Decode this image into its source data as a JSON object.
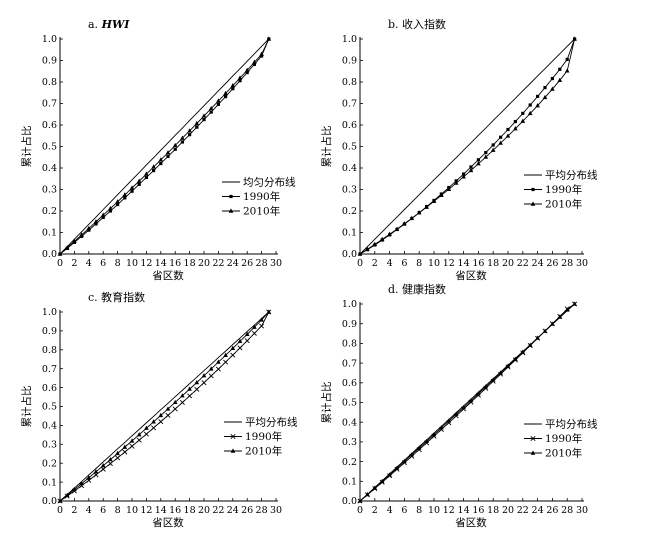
{
  "chart_data": [
    {
      "type": "line",
      "title": "a. HWI",
      "title_prefix": "a.",
      "title_main": "HWI",
      "title_italic": true,
      "xlabel": "省区数",
      "ylabel": "累计占比",
      "xlim": [
        0,
        30
      ],
      "ylim": [
        0,
        1.0
      ],
      "xticks": [
        0,
        2,
        4,
        6,
        8,
        10,
        12,
        14,
        16,
        18,
        20,
        22,
        24,
        26,
        28,
        30
      ],
      "yticks": [
        0.0,
        0.1,
        0.2,
        0.3,
        0.4,
        0.5,
        0.6,
        0.7,
        0.8,
        0.9,
        1.0
      ],
      "legend_position": "center-right",
      "series": [
        {
          "name": "均匀分布线",
          "marker": "none",
          "x": [
            0,
            1,
            2,
            3,
            4,
            5,
            6,
            7,
            8,
            9,
            10,
            11,
            12,
            13,
            14,
            15,
            16,
            17,
            18,
            19,
            20,
            21,
            22,
            23,
            24,
            25,
            26,
            27,
            28,
            29
          ],
          "y": [
            0,
            0.034,
            0.069,
            0.103,
            0.138,
            0.172,
            0.207,
            0.241,
            0.276,
            0.31,
            0.345,
            0.379,
            0.414,
            0.448,
            0.483,
            0.517,
            0.552,
            0.586,
            0.621,
            0.655,
            0.69,
            0.724,
            0.759,
            0.793,
            0.828,
            0.862,
            0.897,
            0.931,
            0.966,
            1.0
          ]
        },
        {
          "name": "1990年",
          "marker": "square",
          "x": [
            0,
            1,
            2,
            3,
            4,
            5,
            6,
            7,
            8,
            9,
            10,
            11,
            12,
            13,
            14,
            15,
            16,
            17,
            18,
            19,
            20,
            21,
            22,
            23,
            24,
            25,
            26,
            27,
            28,
            29
          ],
          "y": [
            0,
            0.026,
            0.054,
            0.082,
            0.111,
            0.14,
            0.17,
            0.2,
            0.23,
            0.261,
            0.292,
            0.324,
            0.356,
            0.388,
            0.421,
            0.454,
            0.487,
            0.521,
            0.555,
            0.59,
            0.625,
            0.66,
            0.696,
            0.732,
            0.769,
            0.806,
            0.844,
            0.882,
            0.921,
            1.0
          ]
        },
        {
          "name": "2010年",
          "marker": "triangle",
          "x": [
            0,
            1,
            2,
            3,
            4,
            5,
            6,
            7,
            8,
            9,
            10,
            11,
            12,
            13,
            14,
            15,
            16,
            17,
            18,
            19,
            20,
            21,
            22,
            23,
            24,
            25,
            26,
            27,
            28,
            29
          ],
          "y": [
            0,
            0.029,
            0.059,
            0.089,
            0.119,
            0.15,
            0.181,
            0.212,
            0.243,
            0.275,
            0.307,
            0.339,
            0.372,
            0.405,
            0.438,
            0.471,
            0.505,
            0.539,
            0.573,
            0.607,
            0.642,
            0.677,
            0.712,
            0.747,
            0.783,
            0.819,
            0.855,
            0.892,
            0.929,
            1.0
          ]
        }
      ]
    },
    {
      "type": "line",
      "title": "b. 收入指数",
      "title_prefix": "b.",
      "title_main": "收入指数",
      "title_italic": false,
      "xlabel": "省区数",
      "ylabel": "累计占比",
      "xlim": [
        0,
        30
      ],
      "ylim": [
        0,
        1.0
      ],
      "xticks": [
        0,
        2,
        4,
        6,
        8,
        10,
        12,
        14,
        16,
        18,
        20,
        22,
        24,
        26,
        28,
        30
      ],
      "yticks": [
        0.0,
        0.1,
        0.2,
        0.3,
        0.4,
        0.5,
        0.6,
        0.7,
        0.8,
        0.9,
        1.0
      ],
      "legend_position": "center-right",
      "series": [
        {
          "name": "平均分布线",
          "marker": "none",
          "x": [
            0,
            1,
            2,
            3,
            4,
            5,
            6,
            7,
            8,
            9,
            10,
            11,
            12,
            13,
            14,
            15,
            16,
            17,
            18,
            19,
            20,
            21,
            22,
            23,
            24,
            25,
            26,
            27,
            28,
            29
          ],
          "y": [
            0,
            0.034,
            0.069,
            0.103,
            0.138,
            0.172,
            0.207,
            0.241,
            0.276,
            0.31,
            0.345,
            0.379,
            0.414,
            0.448,
            0.483,
            0.517,
            0.552,
            0.586,
            0.621,
            0.655,
            0.69,
            0.724,
            0.759,
            0.793,
            0.828,
            0.862,
            0.897,
            0.931,
            0.966,
            1.0
          ]
        },
        {
          "name": "1990年",
          "marker": "square",
          "x": [
            0,
            1,
            2,
            3,
            4,
            5,
            6,
            7,
            8,
            9,
            10,
            11,
            12,
            13,
            14,
            15,
            16,
            17,
            18,
            19,
            20,
            21,
            22,
            23,
            24,
            25,
            26,
            27,
            28,
            29
          ],
          "y": [
            0,
            0.02,
            0.042,
            0.065,
            0.089,
            0.114,
            0.139,
            0.165,
            0.192,
            0.22,
            0.249,
            0.279,
            0.309,
            0.34,
            0.372,
            0.405,
            0.438,
            0.472,
            0.507,
            0.543,
            0.579,
            0.616,
            0.654,
            0.693,
            0.733,
            0.774,
            0.816,
            0.859,
            0.905,
            1.0
          ]
        },
        {
          "name": "2010年",
          "marker": "triangle",
          "x": [
            0,
            1,
            2,
            3,
            4,
            5,
            6,
            7,
            8,
            9,
            10,
            11,
            12,
            13,
            14,
            15,
            16,
            17,
            18,
            19,
            20,
            21,
            22,
            23,
            24,
            25,
            26,
            27,
            28,
            29
          ],
          "y": [
            0,
            0.022,
            0.045,
            0.068,
            0.092,
            0.116,
            0.141,
            0.166,
            0.192,
            0.218,
            0.245,
            0.273,
            0.301,
            0.33,
            0.359,
            0.389,
            0.42,
            0.451,
            0.483,
            0.516,
            0.549,
            0.583,
            0.618,
            0.654,
            0.69,
            0.728,
            0.767,
            0.808,
            0.852,
            1.0
          ]
        }
      ]
    },
    {
      "type": "line",
      "title": "c. 教育指数",
      "title_prefix": "c.",
      "title_main": "教育指数",
      "title_italic": false,
      "xlabel": "省区数",
      "ylabel": "累计占比",
      "xlim": [
        0,
        30
      ],
      "ylim": [
        0,
        1.0
      ],
      "xticks": [
        0,
        2,
        4,
        6,
        8,
        10,
        12,
        14,
        16,
        18,
        20,
        22,
        24,
        26,
        28,
        30
      ],
      "yticks": [
        0.0,
        0.1,
        0.2,
        0.3,
        0.4,
        0.5,
        0.6,
        0.7,
        0.8,
        0.9,
        1.0
      ],
      "legend_position": "center-right",
      "series": [
        {
          "name": "平均分布线",
          "marker": "none",
          "x": [
            0,
            1,
            2,
            3,
            4,
            5,
            6,
            7,
            8,
            9,
            10,
            11,
            12,
            13,
            14,
            15,
            16,
            17,
            18,
            19,
            20,
            21,
            22,
            23,
            24,
            25,
            26,
            27,
            28,
            29
          ],
          "y": [
            0,
            0.034,
            0.069,
            0.103,
            0.138,
            0.172,
            0.207,
            0.241,
            0.276,
            0.31,
            0.345,
            0.379,
            0.414,
            0.448,
            0.483,
            0.517,
            0.552,
            0.586,
            0.621,
            0.655,
            0.69,
            0.724,
            0.759,
            0.793,
            0.828,
            0.862,
            0.897,
            0.931,
            0.966,
            1.0
          ]
        },
        {
          "name": "1990年",
          "marker": "cross",
          "x": [
            0,
            1,
            2,
            3,
            4,
            5,
            6,
            7,
            8,
            9,
            10,
            11,
            12,
            13,
            14,
            15,
            16,
            17,
            18,
            19,
            20,
            21,
            22,
            23,
            24,
            25,
            26,
            27,
            28,
            29
          ],
          "y": [
            0,
            0.026,
            0.053,
            0.081,
            0.109,
            0.138,
            0.168,
            0.198,
            0.228,
            0.259,
            0.29,
            0.322,
            0.354,
            0.387,
            0.42,
            0.453,
            0.487,
            0.521,
            0.556,
            0.591,
            0.626,
            0.662,
            0.698,
            0.735,
            0.772,
            0.81,
            0.848,
            0.887,
            0.926,
            1.0
          ]
        },
        {
          "name": "2010年",
          "marker": "triangle",
          "x": [
            0,
            1,
            2,
            3,
            4,
            5,
            6,
            7,
            8,
            9,
            10,
            11,
            12,
            13,
            14,
            15,
            16,
            17,
            18,
            19,
            20,
            21,
            22,
            23,
            24,
            25,
            26,
            27,
            28,
            29
          ],
          "y": [
            0,
            0.03,
            0.061,
            0.092,
            0.123,
            0.155,
            0.187,
            0.219,
            0.252,
            0.285,
            0.318,
            0.351,
            0.385,
            0.419,
            0.453,
            0.487,
            0.522,
            0.557,
            0.592,
            0.627,
            0.663,
            0.699,
            0.735,
            0.771,
            0.808,
            0.845,
            0.882,
            0.92,
            0.958,
            1.0
          ]
        }
      ]
    },
    {
      "type": "line",
      "title": "d. 健康指数",
      "title_prefix": "d.",
      "title_main": "健康指数",
      "title_italic": false,
      "xlabel": "省区数",
      "ylabel": "累计占比",
      "xlim": [
        0,
        30
      ],
      "ylim": [
        0,
        1.0
      ],
      "xticks": [
        0,
        2,
        4,
        6,
        8,
        10,
        12,
        14,
        16,
        18,
        20,
        22,
        24,
        26,
        28,
        30
      ],
      "yticks": [
        0.0,
        0.1,
        0.2,
        0.3,
        0.4,
        0.5,
        0.6,
        0.7,
        0.8,
        0.9,
        1.0
      ],
      "legend_position": "lower-right",
      "series": [
        {
          "name": "平均分布线",
          "marker": "none",
          "x": [
            0,
            1,
            2,
            3,
            4,
            5,
            6,
            7,
            8,
            9,
            10,
            11,
            12,
            13,
            14,
            15,
            16,
            17,
            18,
            19,
            20,
            21,
            22,
            23,
            24,
            25,
            26,
            27,
            28,
            29
          ],
          "y": [
            0,
            0.034,
            0.069,
            0.103,
            0.138,
            0.172,
            0.207,
            0.241,
            0.276,
            0.31,
            0.345,
            0.379,
            0.414,
            0.448,
            0.483,
            0.517,
            0.552,
            0.586,
            0.621,
            0.655,
            0.69,
            0.724,
            0.759,
            0.793,
            0.828,
            0.862,
            0.897,
            0.931,
            0.966,
            1.0
          ]
        },
        {
          "name": "1990年",
          "marker": "cross",
          "x": [
            0,
            1,
            2,
            3,
            4,
            5,
            6,
            7,
            8,
            9,
            10,
            11,
            12,
            13,
            14,
            15,
            16,
            17,
            18,
            19,
            20,
            21,
            22,
            23,
            24,
            25,
            26,
            27,
            28,
            29
          ],
          "y": [
            0,
            0.031,
            0.063,
            0.095,
            0.128,
            0.161,
            0.194,
            0.227,
            0.261,
            0.295,
            0.329,
            0.363,
            0.397,
            0.432,
            0.467,
            0.502,
            0.537,
            0.572,
            0.608,
            0.644,
            0.68,
            0.716,
            0.752,
            0.789,
            0.826,
            0.863,
            0.9,
            0.937,
            0.975,
            1.0
          ]
        },
        {
          "name": "2010年",
          "marker": "triangle",
          "x": [
            0,
            1,
            2,
            3,
            4,
            5,
            6,
            7,
            8,
            9,
            10,
            11,
            12,
            13,
            14,
            15,
            16,
            17,
            18,
            19,
            20,
            21,
            22,
            23,
            24,
            25,
            26,
            27,
            28,
            29
          ],
          "y": [
            0,
            0.033,
            0.066,
            0.1,
            0.133,
            0.167,
            0.201,
            0.235,
            0.269,
            0.303,
            0.337,
            0.372,
            0.406,
            0.441,
            0.475,
            0.51,
            0.545,
            0.58,
            0.615,
            0.65,
            0.685,
            0.72,
            0.756,
            0.791,
            0.827,
            0.862,
            0.898,
            0.934,
            0.97,
            1.0
          ]
        }
      ]
    }
  ]
}
